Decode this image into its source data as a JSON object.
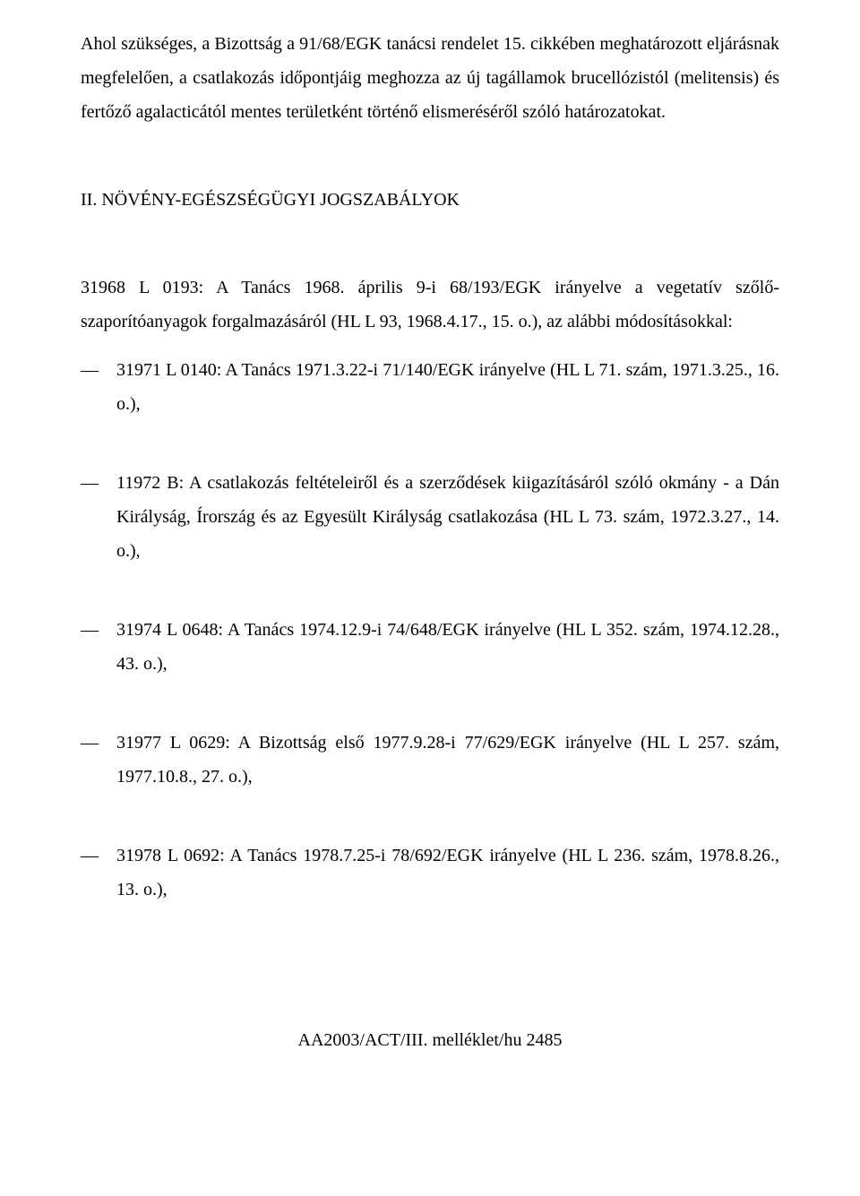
{
  "intro": {
    "p1": "Ahol szükséges, a Bizottság a 91/68/EGK tanácsi rendelet 15. cikkében meghatározott eljárásnak megfelelően, a csatlakozás időpontjáig meghozza az új tagállamok brucellózistól (melitensis) és fertőző agalacticától mentes területként történő elismeréséről szóló határozatokat."
  },
  "section": {
    "heading": "II. NÖVÉNY-EGÉSZSÉGÜGYI JOGSZABÁLYOK",
    "lead": "31968 L 0193: A Tanács 1968. április 9-i 68/193/EGK irányelve a vegetatív szőlő-szaporítóanyagok forgalmazásáról (HL L 93, 1968.4.17., 15. o.), az alábbi módosításokkal:"
  },
  "items": [
    "31971 L 0140: A Tanács 1971.3.22-i 71/140/EGK irányelve (HL L 71. szám, 1971.3.25., 16. o.),",
    "11972 B: A csatlakozás feltételeiről és a szerződések kiigazításáról szóló okmány - a Dán Királyság, Írország és az Egyesült Királyság csatlakozása (HL L 73. szám, 1972.3.27., 14. o.),",
    "31974 L 0648: A Tanács 1974.12.9-i 74/648/EGK irányelve (HL L 352. szám, 1974.12.28., 43. o.),",
    "31977 L 0629: A Bizottság első 1977.9.28-i 77/629/EGK irányelve (HL L 257. szám, 1977.10.8., 27. o.),",
    "31978 L 0692: A Tanács 1978.7.25-i 78/692/EGK irányelve (HL L 236. szám, 1978.8.26., 13. o.),"
  ],
  "footer": "AA2003/ACT/III. melléklet/hu 2485"
}
